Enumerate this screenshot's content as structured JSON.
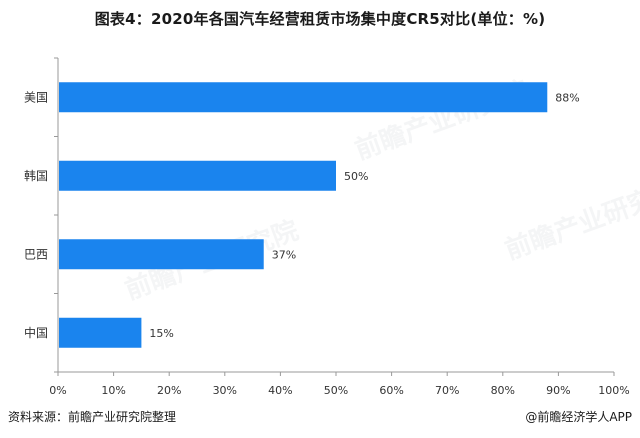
{
  "title": "图表4：2020年各国汽车经营租赁市场集中度CR5对比(单位：%)",
  "footer": {
    "source": "资料来源：前瞻产业研究院整理",
    "brand": "@前瞻经济学人APP"
  },
  "watermark": "前瞻产业研究院",
  "colors": {
    "bar": "#1a84ee",
    "axis": "#999999",
    "text": "#333333"
  },
  "chart_data": {
    "type": "bar",
    "orientation": "horizontal",
    "categories": [
      "美国",
      "韩国",
      "巴西",
      "中国"
    ],
    "values": [
      88,
      50,
      37,
      15
    ],
    "value_labels": [
      "88%",
      "50%",
      "37%",
      "15%"
    ],
    "xlim": [
      0,
      100
    ],
    "xticks": [
      "0%",
      "10%",
      "20%",
      "30%",
      "40%",
      "50%",
      "60%",
      "70%",
      "80%",
      "90%",
      "100%"
    ],
    "grid": false,
    "legend": "none"
  }
}
